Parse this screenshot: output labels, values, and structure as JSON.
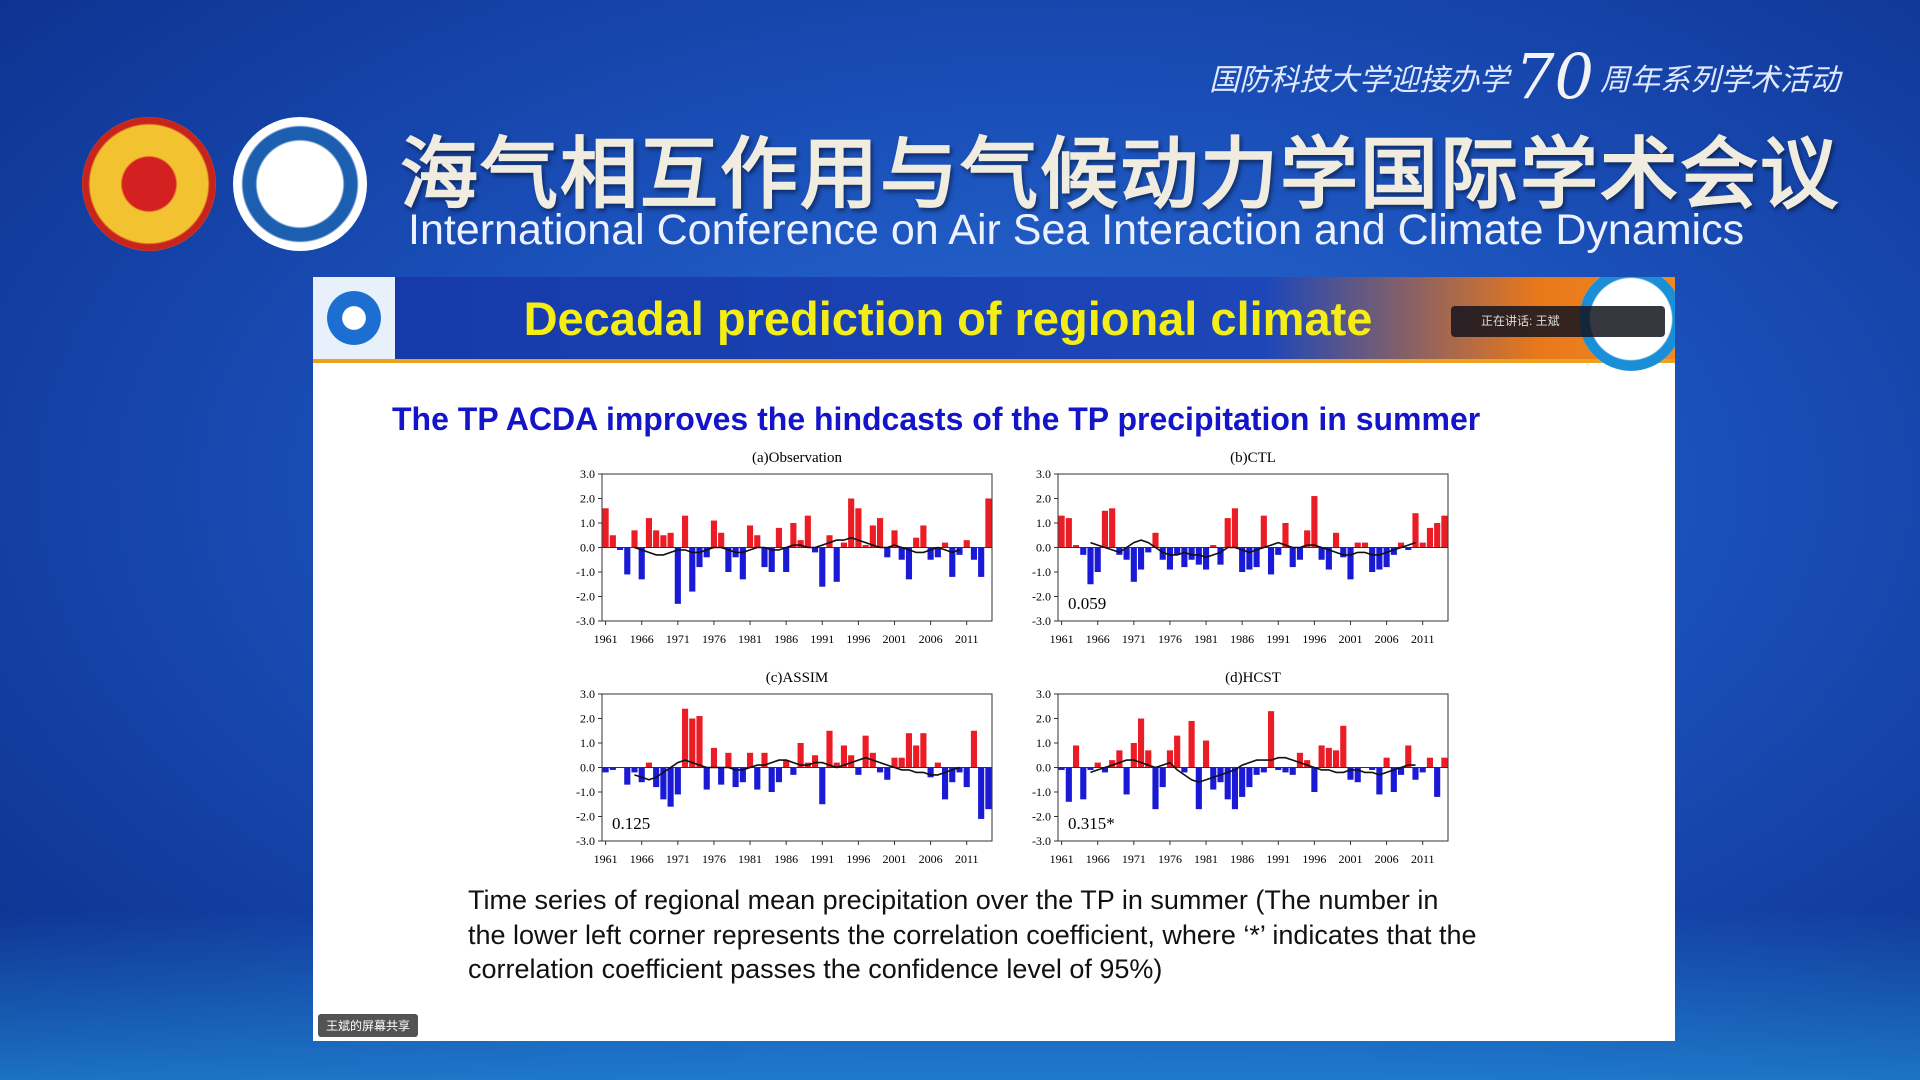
{
  "header": {
    "event_prefix": "国防科技大学迎接办学",
    "event_number": "70",
    "event_suffix": "周年系列学术活动",
    "title_cn": "海气相互作用与气候动力学国际学术会议",
    "title_en": "International Conference on Air Sea Interaction and Climate Dynamics"
  },
  "slide": {
    "title": "Decadal prediction of regional climate",
    "speaker": "正在讲话: 王斌",
    "subtitle": "The TP ACDA improves the hindcasts of the TP precipitation in summer",
    "caption": [
      "Time series of regional mean precipitation over the TP in summer (The number in",
      "the lower left corner represents the correlation coefficient, where ‘*’ indicates that the",
      "correlation coefficient passes the confidence level of 95%)"
    ],
    "share_label": "王斌的屏幕共享"
  },
  "chart_data": [
    {
      "type": "bar",
      "title": "(a)Observation",
      "x": [
        1961,
        1962,
        1963,
        1964,
        1965,
        1966,
        1967,
        1968,
        1969,
        1970,
        1971,
        1972,
        1973,
        1974,
        1975,
        1976,
        1977,
        1978,
        1979,
        1980,
        1981,
        1982,
        1983,
        1984,
        1985,
        1986,
        1987,
        1988,
        1989,
        1990,
        1991,
        1992,
        1993,
        1994,
        1995,
        1996,
        1997,
        1998,
        1999,
        2000,
        2001,
        2002,
        2003,
        2004,
        2005,
        2006,
        2007,
        2008,
        2009,
        2010,
        2011,
        2012,
        2013,
        2014
      ],
      "values": [
        1.6,
        0.5,
        -0.1,
        -1.1,
        0.7,
        -1.3,
        1.2,
        0.7,
        0.5,
        0.6,
        -2.3,
        1.3,
        -1.8,
        -0.8,
        -0.4,
        1.1,
        0.6,
        -1.0,
        -0.4,
        -1.3,
        0.9,
        0.5,
        -0.8,
        -1.0,
        0.8,
        -1.0,
        1.0,
        0.3,
        1.3,
        -0.2,
        -1.6,
        0.5,
        -1.4,
        0.2,
        2.0,
        1.6,
        0.1,
        0.9,
        1.2,
        -0.4,
        0.7,
        -0.5,
        -1.3,
        0.4,
        0.9,
        -0.5,
        -0.4,
        0.2,
        -1.2,
        -0.3,
        0.3,
        -0.5,
        -1.2,
        2.0
      ],
      "line_values": [
        null,
        null,
        null,
        null,
        0.0,
        -0.1,
        -0.2,
        -0.3,
        -0.3,
        -0.2,
        -0.1,
        -0.1,
        -0.2,
        -0.2,
        -0.1,
        0.0,
        0.0,
        -0.1,
        -0.2,
        -0.2,
        -0.1,
        0.0,
        0.0,
        -0.1,
        -0.1,
        0.0,
        0.1,
        0.1,
        0.0,
        0.0,
        0.1,
        0.2,
        0.3,
        0.3,
        0.4,
        0.3,
        0.2,
        0.1,
        0.0,
        0.0,
        0.1,
        0.0,
        -0.1,
        -0.2,
        -0.2,
        -0.1,
        0.0,
        -0.1,
        -0.2,
        -0.1,
        null,
        null,
        null,
        null
      ],
      "color": "#ec1c24",
      "negative_color": "#1a1ad6",
      "line_color": "#111111",
      "xlim": [
        1960.5,
        2014.5
      ],
      "xticks": [
        1961,
        1966,
        1971,
        1976,
        1981,
        1986,
        1991,
        1996,
        2001,
        2006,
        2011
      ],
      "ylim": [
        -3,
        3
      ],
      "yticks": [
        {
          "value": -3,
          "label": "-3.0"
        },
        {
          "value": -2,
          "label": "-2.0"
        },
        {
          "value": -1,
          "label": "-1.0"
        },
        {
          "value": 0,
          "label": "0.0"
        },
        {
          "value": 1,
          "label": "1.0"
        },
        {
          "value": 2,
          "label": "2.0"
        },
        {
          "value": 3,
          "label": "3.0"
        }
      ]
    },
    {
      "type": "bar",
      "title": "(b)CTL",
      "annotation": "0.059",
      "x": [
        1961,
        1962,
        1963,
        1964,
        1965,
        1966,
        1967,
        1968,
        1969,
        1970,
        1971,
        1972,
        1973,
        1974,
        1975,
        1976,
        1977,
        1978,
        1979,
        1980,
        1981,
        1982,
        1983,
        1984,
        1985,
        1986,
        1987,
        1988,
        1989,
        1990,
        1991,
        1992,
        1993,
        1994,
        1995,
        1996,
        1997,
        1998,
        1999,
        2000,
        2001,
        2002,
        2003,
        2004,
        2005,
        2006,
        2007,
        2008,
        2009,
        2010,
        2011,
        2012,
        2013,
        2014
      ],
      "values": [
        1.3,
        1.2,
        0.1,
        -0.3,
        -1.5,
        -1.0,
        1.5,
        1.6,
        -0.3,
        -0.5,
        -1.4,
        -0.9,
        -0.2,
        0.6,
        -0.5,
        -0.9,
        -0.3,
        -0.8,
        -0.5,
        -0.7,
        -0.9,
        0.1,
        -0.7,
        1.2,
        1.6,
        -1.0,
        -0.9,
        -0.8,
        1.3,
        -1.1,
        -0.3,
        1.0,
        -0.8,
        -0.5,
        0.7,
        2.1,
        -0.5,
        -0.9,
        0.6,
        -0.4,
        -1.3,
        0.2,
        0.2,
        -1.0,
        -0.9,
        -0.8,
        -0.3,
        0.2,
        -0.1,
        1.4,
        0.2,
        0.8,
        1.0,
        1.3
      ],
      "line_values": [
        null,
        null,
        null,
        null,
        0.2,
        0.1,
        0.0,
        -0.1,
        -0.2,
        0.0,
        0.2,
        0.3,
        0.2,
        0.0,
        -0.2,
        -0.3,
        -0.3,
        -0.2,
        -0.3,
        -0.3,
        -0.4,
        -0.3,
        -0.2,
        0.0,
        0.0,
        -0.1,
        -0.2,
        -0.1,
        0.0,
        0.1,
        0.2,
        0.1,
        0.0,
        0.0,
        0.1,
        0.1,
        0.0,
        -0.1,
        -0.2,
        -0.3,
        -0.3,
        -0.2,
        -0.2,
        -0.3,
        -0.3,
        -0.2,
        -0.1,
        0.0,
        0.1,
        0.2,
        null,
        null,
        null,
        null
      ],
      "color": "#ec1c24",
      "negative_color": "#1a1ad6",
      "line_color": "#111111",
      "xlim": [
        1960.5,
        2014.5
      ],
      "xticks": [
        1961,
        1966,
        1971,
        1976,
        1981,
        1986,
        1991,
        1996,
        2001,
        2006,
        2011
      ],
      "ylim": [
        -3,
        3
      ],
      "yticks": [
        {
          "value": -3,
          "label": "-3.0"
        },
        {
          "value": -2,
          "label": "-2.0"
        },
        {
          "value": -1,
          "label": "-1.0"
        },
        {
          "value": 0,
          "label": "0.0"
        },
        {
          "value": 1,
          "label": "1.0"
        },
        {
          "value": 2,
          "label": "2.0"
        },
        {
          "value": 3,
          "label": "3.0"
        }
      ]
    },
    {
      "type": "bar",
      "title": "(c)ASSIM",
      "annotation": "0.125",
      "x": [
        1961,
        1962,
        1963,
        1964,
        1965,
        1966,
        1967,
        1968,
        1969,
        1970,
        1971,
        1972,
        1973,
        1974,
        1975,
        1976,
        1977,
        1978,
        1979,
        1980,
        1981,
        1982,
        1983,
        1984,
        1985,
        1986,
        1987,
        1988,
        1989,
        1990,
        1991,
        1992,
        1993,
        1994,
        1995,
        1996,
        1997,
        1998,
        1999,
        2000,
        2001,
        2002,
        2003,
        2004,
        2005,
        2006,
        2007,
        2008,
        2009,
        2010,
        2011,
        2012,
        2013,
        2014
      ],
      "values": [
        -0.2,
        -0.1,
        0.0,
        -0.7,
        -0.2,
        -0.6,
        0.2,
        -0.8,
        -1.3,
        -1.6,
        -1.1,
        2.4,
        2.0,
        2.1,
        -0.9,
        0.8,
        -0.7,
        0.6,
        -0.8,
        -0.6,
        0.6,
        -0.9,
        0.6,
        -1.0,
        -0.6,
        0.3,
        -0.3,
        1.0,
        0.2,
        0.5,
        -1.5,
        1.5,
        0.2,
        0.9,
        0.5,
        -0.3,
        1.3,
        0.6,
        -0.2,
        -0.5,
        0.4,
        0.4,
        1.4,
        0.9,
        1.4,
        -0.4,
        0.2,
        -1.3,
        -0.6,
        -0.2,
        -0.8,
        1.5,
        -2.1,
        -1.7
      ],
      "line_values": [
        null,
        null,
        null,
        null,
        -0.3,
        -0.4,
        -0.5,
        -0.4,
        -0.2,
        0.0,
        0.2,
        0.3,
        0.2,
        0.1,
        0.0,
        0.0,
        0.0,
        0.0,
        -0.1,
        -0.1,
        0.0,
        0.1,
        0.1,
        0.2,
        0.3,
        0.3,
        0.2,
        0.1,
        0.1,
        0.2,
        0.2,
        0.1,
        0.0,
        0.1,
        0.2,
        0.3,
        0.4,
        0.3,
        0.2,
        0.1,
        0.0,
        -0.1,
        -0.1,
        -0.2,
        -0.2,
        -0.3,
        -0.3,
        -0.2,
        -0.1,
        0.0,
        null,
        null,
        null,
        null
      ],
      "color": "#ec1c24",
      "negative_color": "#1a1ad6",
      "line_color": "#111111",
      "xlim": [
        1960.5,
        2014.5
      ],
      "xticks": [
        1961,
        1966,
        1971,
        1976,
        1981,
        1986,
        1991,
        1996,
        2001,
        2006,
        2011
      ],
      "ylim": [
        -3,
        3
      ],
      "yticks": [
        {
          "value": -3,
          "label": "-3.0"
        },
        {
          "value": -2,
          "label": "-2.0"
        },
        {
          "value": -1,
          "label": "-1.0"
        },
        {
          "value": 0,
          "label": "0.0"
        },
        {
          "value": 1,
          "label": "1.0"
        },
        {
          "value": 2,
          "label": "2.0"
        },
        {
          "value": 3,
          "label": "3.0"
        }
      ]
    },
    {
      "type": "bar",
      "title": "(d)HCST",
      "annotation": "0.315*",
      "x": [
        1961,
        1962,
        1963,
        1964,
        1965,
        1966,
        1967,
        1968,
        1969,
        1970,
        1971,
        1972,
        1973,
        1974,
        1975,
        1976,
        1977,
        1978,
        1979,
        1980,
        1981,
        1982,
        1983,
        1984,
        1985,
        1986,
        1987,
        1988,
        1989,
        1990,
        1991,
        1992,
        1993,
        1994,
        1995,
        1996,
        1997,
        1998,
        1999,
        2000,
        2001,
        2002,
        2003,
        2004,
        2005,
        2006,
        2007,
        2008,
        2009,
        2010,
        2011,
        2012,
        2013,
        2014
      ],
      "values": [
        -0.1,
        -1.4,
        0.9,
        -1.3,
        -0.1,
        0.2,
        -0.2,
        0.3,
        0.7,
        -1.1,
        1.0,
        2.0,
        0.7,
        -1.7,
        -0.8,
        0.7,
        1.3,
        -0.2,
        1.9,
        -1.7,
        1.1,
        -0.9,
        -0.6,
        -1.3,
        -1.7,
        -1.2,
        -0.8,
        -0.3,
        -0.2,
        2.3,
        -0.1,
        -0.2,
        -0.3,
        0.6,
        0.3,
        -1.0,
        0.9,
        0.8,
        0.7,
        1.7,
        -0.5,
        -0.6,
        0.0,
        -0.1,
        -1.1,
        0.4,
        -1.0,
        -0.3,
        0.9,
        -0.5,
        -0.2,
        0.4,
        -1.2,
        0.4
      ],
      "line_values": [
        null,
        null,
        null,
        null,
        -0.2,
        -0.1,
        0.0,
        0.1,
        0.2,
        0.3,
        0.3,
        0.2,
        0.1,
        0.0,
        0.1,
        0.2,
        -0.1,
        -0.3,
        -0.5,
        -0.6,
        -0.5,
        -0.4,
        -0.3,
        -0.2,
        -0.1,
        0.1,
        0.2,
        0.3,
        0.3,
        0.3,
        0.4,
        0.4,
        0.3,
        0.2,
        0.1,
        0.0,
        -0.1,
        -0.1,
        -0.2,
        -0.2,
        -0.1,
        -0.1,
        -0.2,
        -0.2,
        -0.3,
        -0.2,
        -0.1,
        0.0,
        0.1,
        0.1,
        null,
        null,
        null,
        null
      ],
      "color": "#ec1c24",
      "negative_color": "#1a1ad6",
      "line_color": "#111111",
      "xlim": [
        1960.5,
        2014.5
      ],
      "xticks": [
        1961,
        1966,
        1971,
        1976,
        1981,
        1986,
        1991,
        1996,
        2001,
        2006,
        2011
      ],
      "ylim": [
        -3,
        3
      ],
      "yticks": [
        {
          "value": -3,
          "label": "-3.0"
        },
        {
          "value": -2,
          "label": "-2.0"
        },
        {
          "value": -1,
          "label": "-1.0"
        },
        {
          "value": 0,
          "label": "0.0"
        },
        {
          "value": 1,
          "label": "1.0"
        },
        {
          "value": 2,
          "label": "2.0"
        },
        {
          "value": 3,
          "label": "3.0"
        }
      ]
    }
  ]
}
